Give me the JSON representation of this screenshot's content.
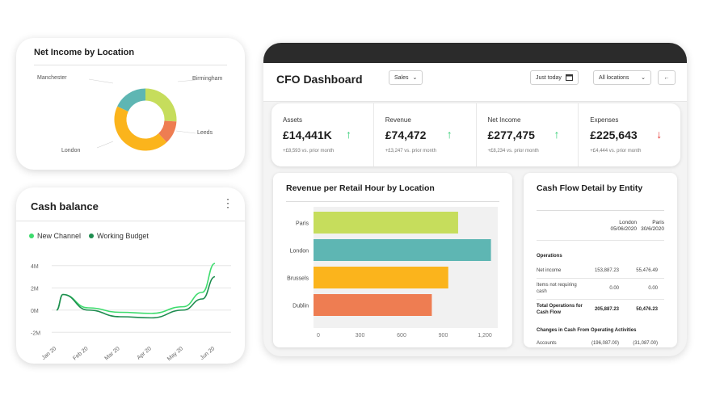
{
  "colors": {
    "green": "#2ecc71",
    "red": "#e53935",
    "dark": "#2b2b2b",
    "series_new": "#3ddc6d",
    "series_working": "#1e8c4f"
  },
  "net_income": {
    "title": "Net Income by Location",
    "labels": {
      "manchester": "Manchester",
      "birmingham": "Birmingham",
      "leeds": "Leeds",
      "london": "London"
    }
  },
  "cash_balance": {
    "title": "Cash balance",
    "menu_icon": "kebab-icon",
    "legend": [
      "New Channel",
      "Working Budget"
    ]
  },
  "dashboard": {
    "title": "CFO Dashboard",
    "filter_sales": "Sales",
    "date_picker": "Just today",
    "location_filter": "All locations",
    "kpis": [
      {
        "label": "Assets",
        "value": "£14,441K",
        "trend": "up",
        "sub": "+£8,593 vs. prior month"
      },
      {
        "label": "Revenue",
        "value": "£74,472",
        "trend": "up",
        "sub": "+£3,247 vs. prior month"
      },
      {
        "label": "Net Income",
        "value": "£277,475",
        "trend": "up",
        "sub": "+£8,234 vs. prior month"
      },
      {
        "label": "Expenses",
        "value": "£225,643",
        "trend": "down",
        "sub": "+£4,444 vs. prior month"
      }
    ],
    "revenue_panel_title": "Revenue per Retail Hour by Location",
    "cash_flow": {
      "title": "Cash Flow Detail by Entity",
      "columns": [
        {
          "name": "London",
          "date": "05/06/2020"
        },
        {
          "name": "Paris",
          "date": "30/6/2020"
        }
      ],
      "section_operations": "Operations",
      "rows": [
        {
          "label": "Net income",
          "london": "153,887.23",
          "paris": "55,476.49"
        },
        {
          "label": "Items not requiring cash",
          "london": "0.00",
          "paris": "0.00"
        },
        {
          "label": "Total Operations for Cash Flow",
          "london": "205,887.23",
          "paris": "50,476.23",
          "bold": true
        }
      ],
      "section_changes": "Changes in Cash From Operating Activities",
      "last_row": {
        "label": "Accounts",
        "london": "(196,087.00)",
        "paris": "(31,087.00)"
      }
    }
  },
  "chart_data": [
    {
      "type": "pie",
      "title": "Net Income by Location",
      "slices": [
        {
          "label": "Birmingham",
          "value": 26,
          "color": "#c6dd5c"
        },
        {
          "label": "Leeds",
          "value": 12,
          "color": "#ee7d52"
        },
        {
          "label": "London",
          "value": 44,
          "color": "#fbb41c"
        },
        {
          "label": "Manchester",
          "value": 18,
          "color": "#5eb6b3"
        }
      ]
    },
    {
      "type": "line",
      "title": "Cash balance",
      "x": [
        "Jan 20",
        "Feb 20",
        "Mar 20",
        "Apr 20",
        "May 20",
        "Jun 20"
      ],
      "y_ticks": [
        "4M",
        "2M",
        "0M",
        "-2M"
      ],
      "ylim": [
        -2.2,
        5
      ],
      "series": [
        {
          "name": "New Channel",
          "x": [
            0,
            0.2,
            1,
            2,
            3,
            4,
            4.6,
            5
          ],
          "values": [
            0,
            1.4,
            0.2,
            -0.2,
            -0.3,
            0.3,
            1.6,
            4.2
          ]
        },
        {
          "name": "Working Budget",
          "x": [
            0,
            0.2,
            1,
            2,
            3,
            4,
            4.6,
            5
          ],
          "values": [
            0,
            1.4,
            0,
            -0.6,
            -0.7,
            0,
            1.0,
            3.0
          ]
        }
      ]
    },
    {
      "type": "bar",
      "orientation": "horizontal",
      "title": "Revenue per Retail Hour by Location",
      "categories": [
        "Paris",
        "London",
        "Brussels",
        "Dublin"
      ],
      "values": [
        880,
        1080,
        820,
        720
      ],
      "colors": [
        "#c6dd5c",
        "#5eb6b3",
        "#fbb41c",
        "#ee7d52"
      ],
      "xticks": [
        0,
        300,
        600,
        900,
        1200
      ],
      "xtick_labels": [
        "0",
        "300",
        "600",
        "900",
        "1,200"
      ],
      "xlim": [
        0,
        1200
      ]
    }
  ]
}
